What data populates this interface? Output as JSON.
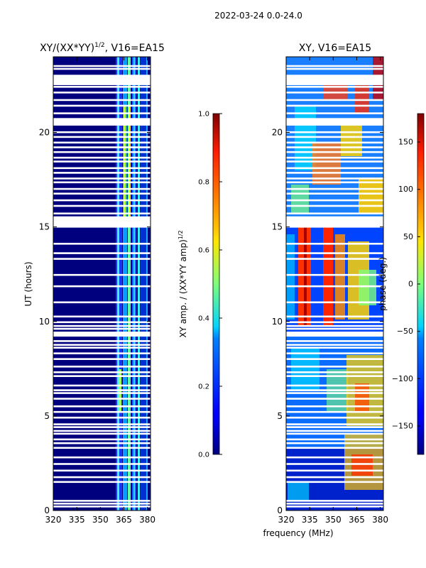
{
  "figure": {
    "suptitle": "2022-03-24 0.0-24.0",
    "xlabel": "frequency (MHz)"
  },
  "chart_data": [
    {
      "type": "heatmap",
      "title": "XY/(XX*YY)^1/2, V16=EA15",
      "title_main": "XY/(XX*YY)",
      "title_sup": "1/2",
      "title_tail": ", V16=EA15",
      "ylabel": "UT (hours)",
      "x_ticks": [
        320,
        335,
        350,
        365,
        380
      ],
      "xlim": [
        320,
        382
      ],
      "y_ticks": [
        0,
        5,
        10,
        15,
        20
      ],
      "ylim": [
        0,
        24
      ],
      "colorbar": {
        "label": "XY amp. / (XX*YY amp)^1/2",
        "label_main": "XY amp. / (XX*YY amp)",
        "label_sup": "1/2",
        "range": [
          0.0,
          1.0
        ],
        "ticks": [
          "0.0",
          "0.2",
          "0.4",
          "0.6",
          "0.8",
          "1.0"
        ]
      }
    },
    {
      "type": "heatmap",
      "title": "XY, V16=EA15",
      "ylabel": "",
      "x_ticks": [
        320,
        335,
        350,
        365,
        380
      ],
      "xlim": [
        320,
        382
      ],
      "y_ticks": [
        0,
        5,
        10,
        15,
        20
      ],
      "ylim": [
        0,
        24
      ],
      "colorbar": {
        "label": "phase (deg.)",
        "range": [
          -180,
          180
        ],
        "ticks": [
          "−150",
          "−100",
          "−50",
          "0",
          "50",
          "100",
          "150"
        ]
      }
    }
  ],
  "flagged_rows_ut": [
    0.2,
    0.35,
    0.5,
    1.5,
    1.75,
    2.1,
    2.45,
    2.8,
    3.3,
    3.55,
    3.75,
    4.05,
    4.2,
    4.4,
    4.55,
    4.9,
    5.2,
    5.5,
    5.9,
    6.2,
    6.35,
    6.6,
    7.1,
    7.3,
    7.6,
    8.0,
    8.3,
    8.6,
    8.75,
    8.95,
    9.25,
    9.4,
    9.6,
    9.75,
    9.95,
    10.25,
    11.0,
    11.85,
    12.45,
    13.3,
    13.6,
    14.1,
    15.0,
    15.15,
    15.3,
    15.5,
    15.7,
    16.1,
    16.4,
    16.75,
    17.0,
    17.35,
    17.55,
    17.85,
    18.1,
    18.45,
    18.65,
    18.95,
    19.2,
    19.45,
    19.75,
    20.0,
    20.4,
    20.55,
    20.7,
    21.0,
    21.4,
    21.7,
    22.1,
    22.4,
    22.55,
    22.7,
    22.9,
    23.35,
    23.5
  ]
}
